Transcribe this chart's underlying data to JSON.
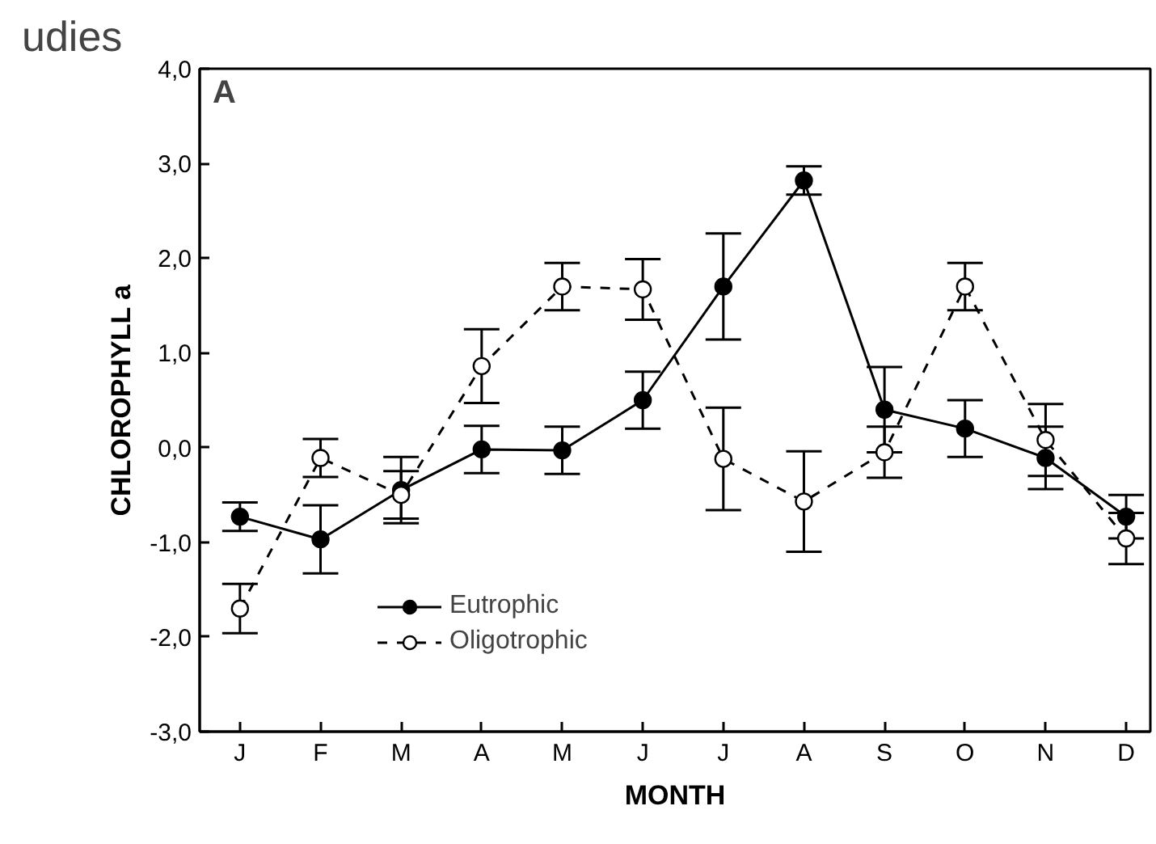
{
  "chart_data": {
    "type": "line",
    "title": "udies",
    "xlabel": "MONTH",
    "ylabel": "CHLOROPHYLL a",
    "annotations": [
      "A"
    ],
    "categories": [
      "J",
      "F",
      "M",
      "A",
      "M",
      "J",
      "J",
      "A",
      "S",
      "O",
      "N",
      "D"
    ],
    "ylim": [
      -3,
      4
    ],
    "yticks": [
      {
        "value": -3,
        "label": "-3,0"
      },
      {
        "value": -2,
        "label": "-2,0"
      },
      {
        "value": -1,
        "label": "-1,0"
      },
      {
        "value": 0,
        "label": "0,0"
      },
      {
        "value": 1,
        "label": "1,0"
      },
      {
        "value": 2,
        "label": "2,0"
      },
      {
        "value": 3,
        "label": "3,0"
      },
      {
        "value": 4,
        "label": "4,0"
      }
    ],
    "series": [
      {
        "name": "Eutrophic",
        "color": "#000000",
        "line_style": "solid",
        "values": [
          -0.73,
          -0.97,
          -0.45,
          -0.02,
          -0.03,
          0.5,
          1.7,
          2.82,
          0.4,
          0.2,
          -0.11,
          -0.73
        ],
        "errors": [
          0.15,
          0.36,
          0.35,
          0.25,
          0.25,
          0.3,
          0.56,
          0.15,
          0.45,
          0.3,
          0.33,
          0.23
        ]
      },
      {
        "name": "Oligotrophic",
        "color": "#000000",
        "line_style": "dashed",
        "values": [
          -1.7,
          -0.11,
          -0.5,
          0.86,
          1.7,
          1.67,
          -0.12,
          -0.57,
          -0.05,
          1.7,
          0.08,
          -0.96
        ],
        "errors": [
          0.26,
          0.2,
          0.25,
          0.39,
          0.25,
          0.32,
          0.54,
          0.53,
          0.27,
          0.25,
          0.38,
          0.27
        ]
      }
    ],
    "marker": "circle",
    "legend": "bottom left",
    "grid": false
  }
}
